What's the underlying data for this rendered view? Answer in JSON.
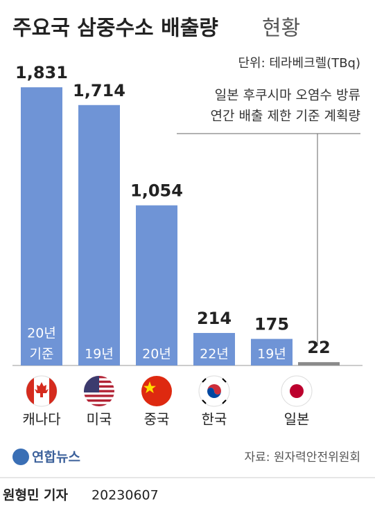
{
  "chart_data": {
    "type": "bar",
    "title": "주요국 삼중수소 배출량",
    "title_suffix": "현황",
    "unit": "단위: 테라베크렐(TBq)",
    "annotation": [
      "일본 후쿠시마 오염수 방류",
      "연간 배출 제한 기준 계획량"
    ],
    "categories": [
      "캐나다",
      "미국",
      "중국",
      "한국",
      "일본",
      null
    ],
    "values": [
      1831,
      1714,
      1054,
      214,
      175,
      22
    ],
    "value_labels": [
      "1,831",
      "1,714",
      "1,054",
      "214",
      "175",
      "22"
    ],
    "bar_labels": [
      [
        "20년",
        "기준"
      ],
      [
        "19년"
      ],
      [
        "20년"
      ],
      [
        "22년"
      ],
      [
        "19년"
      ],
      null
    ],
    "colors": [
      "#6f94d6",
      "#6f94d6",
      "#6f94d6",
      "#6f94d6",
      "#6f94d6",
      "#8a8a8a"
    ],
    "ylim": [
      0,
      2000
    ],
    "source": "자료: 원자력안전위원회",
    "logo": "연합뉴스",
    "byline": "원형민 기자",
    "date": "20230607"
  }
}
